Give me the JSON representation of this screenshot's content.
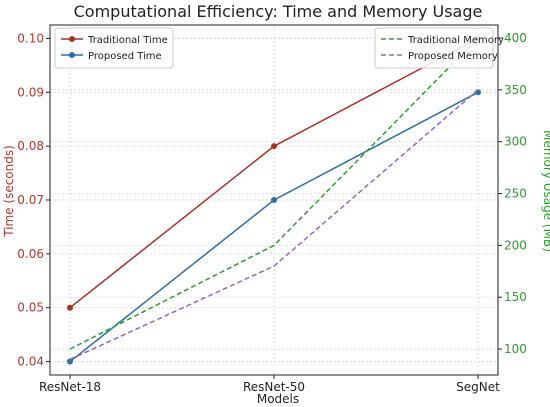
{
  "chart_data": {
    "type": "line",
    "title": "Computational Efficiency: Time and Memory Usage",
    "xlabel": "Models",
    "categories": [
      "ResNet-18",
      "ResNet-50",
      "SegNet"
    ],
    "left_axis": {
      "label": "Time (seconds)",
      "color": "#b03a2e",
      "ylim": [
        0.0375,
        0.1025
      ],
      "ticks": [
        "0.04",
        "0.05",
        "0.06",
        "0.07",
        "0.08",
        "0.09",
        "0.10"
      ],
      "tick_values": [
        0.04,
        0.05,
        0.06,
        0.07,
        0.08,
        0.09,
        0.1
      ]
    },
    "right_axis": {
      "label": "Memory Usage (MB)",
      "color": "#2ca02c",
      "ylim": [
        75,
        412.5
      ],
      "ticks": [
        "100",
        "150",
        "200",
        "250",
        "300",
        "350",
        "400"
      ],
      "tick_values": [
        100,
        150,
        200,
        250,
        300,
        350,
        400
      ]
    },
    "series": [
      {
        "name": "Traditional Time",
        "axis": "left",
        "values": [
          0.05,
          0.08,
          0.1
        ],
        "color": "#a93226",
        "dashed": false,
        "marker": true
      },
      {
        "name": "Proposed Time",
        "axis": "left",
        "values": [
          0.04,
          0.07,
          0.09
        ],
        "color": "#2e6da4",
        "dashed": false,
        "marker": true
      },
      {
        "name": "Traditional Memory",
        "axis": "right",
        "values": [
          100,
          200,
          400
        ],
        "color": "#2ca02c",
        "dashed": true,
        "marker": false
      },
      {
        "name": "Proposed Memory",
        "axis": "right",
        "values": [
          90,
          180,
          350
        ],
        "color": "#9467bd",
        "dashed": true,
        "marker": false
      }
    ],
    "legends": [
      {
        "placement": "top-left",
        "series": [
          "Traditional Time",
          "Proposed Time"
        ]
      },
      {
        "placement": "top-right",
        "series": [
          "Traditional Memory",
          "Proposed Memory"
        ]
      }
    ],
    "grid": true
  }
}
